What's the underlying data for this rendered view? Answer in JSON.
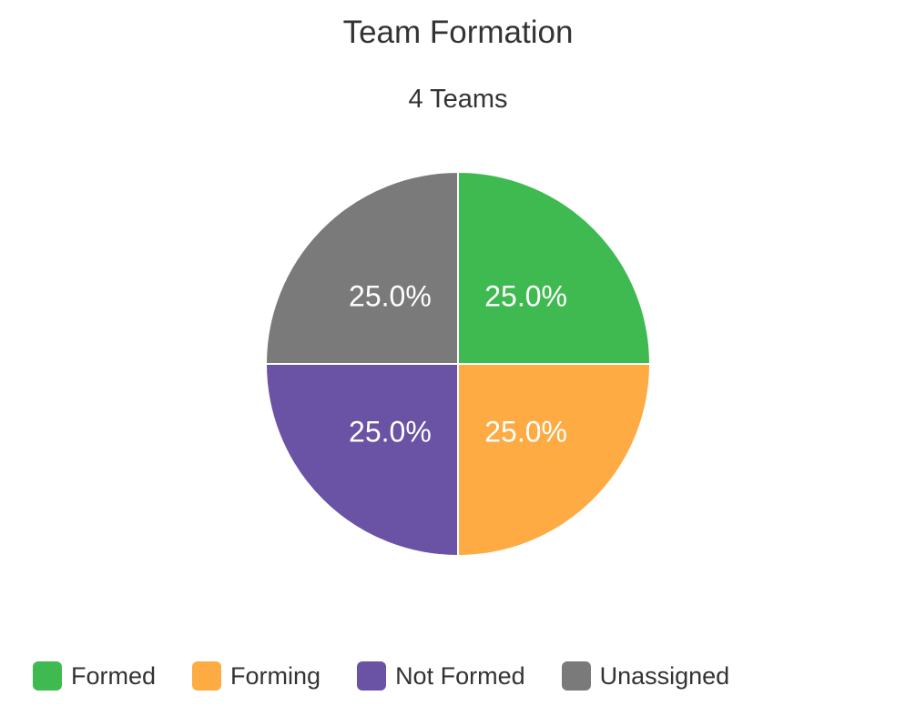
{
  "chart_data": {
    "type": "pie",
    "title": "Team Formation",
    "subtitle": "4 Teams",
    "slices": [
      {
        "name": "Formed",
        "value": 25.0,
        "label": "25.0%",
        "color": "#3fba50"
      },
      {
        "name": "Forming",
        "value": 25.0,
        "label": "25.0%",
        "color": "#fdab42"
      },
      {
        "name": "Not Formed",
        "value": 25.0,
        "label": "25.0%",
        "color": "#6a52a4"
      },
      {
        "name": "Unassigned",
        "value": 25.0,
        "label": "25.0%",
        "color": "#7a7a7a"
      }
    ],
    "legend_position": "bottom-left"
  }
}
